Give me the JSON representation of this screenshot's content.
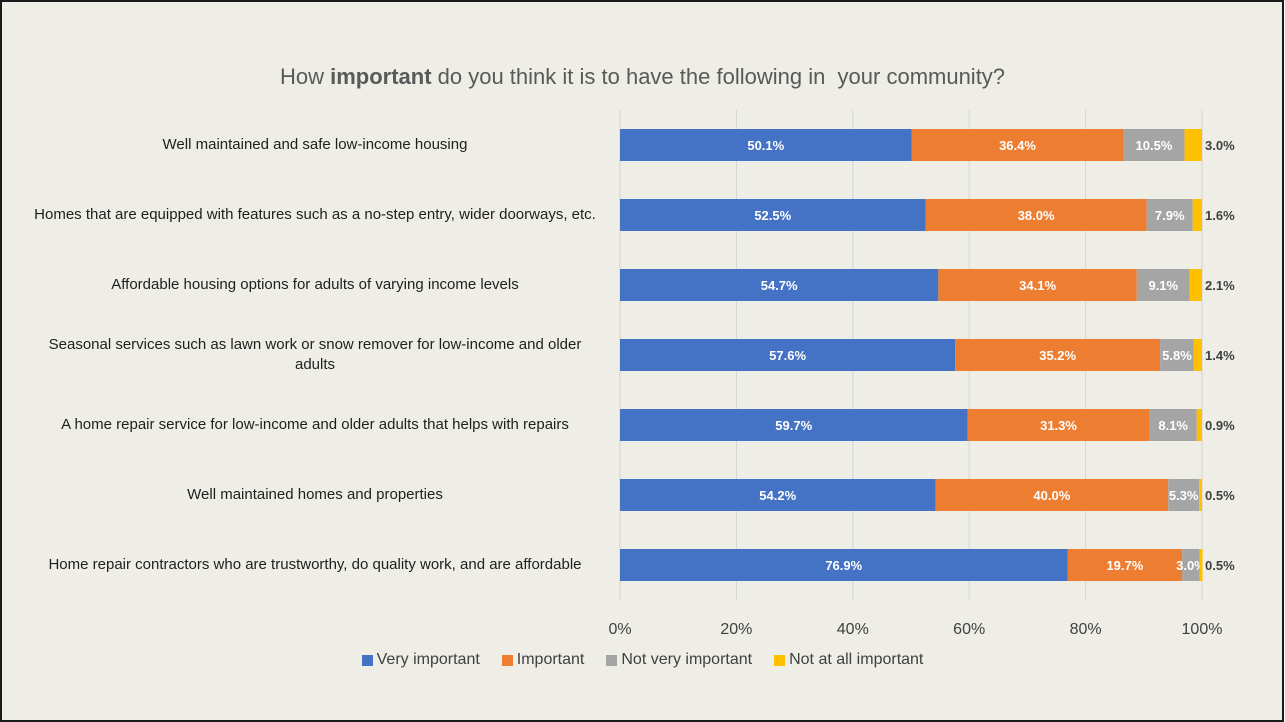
{
  "title": {
    "pre": "How ",
    "bold": "important",
    "post": " do you think it is to have the following in  your community?"
  },
  "chart_data": {
    "type": "bar",
    "orientation": "horizontal",
    "stacked": "percent",
    "categories": [
      "Well maintained and safe low-income housing",
      "Homes that are equipped with features such as a no-step entry, wider doorways, etc.",
      "Affordable housing options for adults of varying income levels",
      "Seasonal services such as lawn work or snow remover for low-income and older adults",
      "A home repair service for low-income and older adults that helps with repairs",
      "Well maintained homes and properties",
      "Home repair contractors who are trustworthy, do quality work, and are affordable"
    ],
    "series": [
      {
        "name": "Very important",
        "color": "#4472c4",
        "values": [
          50.1,
          52.5,
          54.7,
          57.6,
          59.7,
          54.2,
          76.9
        ],
        "labels": [
          "50.1%",
          "52.5%",
          "54.7%",
          "57.6%",
          "59.7%",
          "54.2%",
          "76.9%"
        ]
      },
      {
        "name": "Important",
        "color": "#ed7d31",
        "values": [
          36.4,
          38.0,
          34.1,
          35.2,
          31.3,
          40.0,
          19.7
        ],
        "labels": [
          "36.4%",
          "38.0%",
          "34.1%",
          "35.2%",
          "31.3%",
          "40.0%",
          "19.7%"
        ]
      },
      {
        "name": "Not very important",
        "color": "#a5a5a5",
        "values": [
          10.5,
          7.9,
          9.1,
          5.8,
          8.1,
          5.3,
          3.0
        ],
        "labels": [
          "10.5%",
          "7.9%",
          "9.1%",
          "5.8%",
          "8.1%",
          "5.3%",
          "3.0%"
        ]
      },
      {
        "name": "Not at all important",
        "color": "#ffc000",
        "values": [
          3.0,
          1.6,
          2.1,
          1.4,
          0.9,
          0.5,
          0.5
        ],
        "labels": [
          "3.0%",
          "1.6%",
          "2.1%",
          "1.4%",
          "0.9%",
          "0.5%",
          "0.5%"
        ]
      }
    ],
    "xlim": [
      0,
      100
    ],
    "x_ticks": [
      "0%",
      "20%",
      "40%",
      "60%",
      "80%",
      "100%"
    ],
    "grid": true,
    "legend_position": "bottom"
  }
}
